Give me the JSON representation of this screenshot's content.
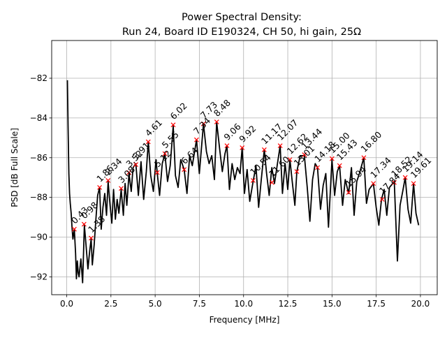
{
  "chart_data": {
    "type": "line",
    "title_line1": "Power Spectral Density:",
    "title_line2": "Run 24, Board ID E190324, CH 50, hi gain, 25Ω",
    "xlabel": "Frequency [MHz]",
    "ylabel": "PSD [dB Full Scale]",
    "xlim": [
      -0.85,
      20.95
    ],
    "ylim": [
      -92.9,
      -80.1
    ],
    "xticks": [
      0.0,
      2.5,
      5.0,
      7.5,
      10.0,
      12.5,
      15.0,
      17.5,
      20.0
    ],
    "xtick_labels": [
      "0.0",
      "2.5",
      "5.0",
      "7.5",
      "10.0",
      "12.5",
      "15.0",
      "17.5",
      "20.0"
    ],
    "yticks": [
      -92,
      -90,
      -88,
      -86,
      -84,
      -82
    ],
    "ytick_labels": [
      "−92",
      "−90",
      "−88",
      "−86",
      "−84",
      "−82"
    ],
    "grid": true,
    "series": [
      {
        "color": "#000000",
        "x": [
          0.04,
          0.08,
          0.12,
          0.16,
          0.2,
          0.25,
          0.3,
          0.35,
          0.43,
          0.5,
          0.55,
          0.6,
          0.65,
          0.7,
          0.8,
          0.9,
          1.0,
          1.1,
          1.2,
          1.3,
          1.38,
          1.45,
          1.55,
          1.65,
          1.75,
          1.86,
          1.95,
          2.05,
          2.15,
          2.25,
          2.34,
          2.45,
          2.55,
          2.65,
          2.75,
          2.85,
          2.95,
          3.08,
          3.2,
          3.3,
          3.4,
          3.52,
          3.65,
          3.75,
          3.91,
          4.05,
          4.2,
          4.35,
          4.5,
          4.61,
          4.75,
          4.9,
          5.05,
          5.12,
          5.25,
          5.4,
          5.55,
          5.7,
          5.85,
          6.02,
          6.15,
          6.3,
          6.45,
          6.64,
          6.8,
          6.95,
          7.1,
          7.34,
          7.5,
          7.73,
          7.9,
          8.05,
          8.2,
          8.35,
          8.48,
          8.65,
          8.8,
          8.95,
          9.06,
          9.2,
          9.35,
          9.5,
          9.65,
          9.8,
          9.92,
          10.05,
          10.2,
          10.35,
          10.54,
          10.7,
          10.85,
          11.0,
          11.17,
          11.3,
          11.45,
          11.6,
          11.75,
          11.9,
          12.07,
          12.2,
          12.35,
          12.5,
          12.62,
          12.75,
          12.9,
          13.01,
          13.2,
          13.44,
          13.6,
          13.75,
          13.9,
          14.05,
          14.18,
          14.35,
          14.5,
          14.65,
          14.8,
          15.0,
          15.15,
          15.3,
          15.43,
          15.6,
          15.75,
          15.94,
          16.1,
          16.25,
          16.4,
          16.55,
          16.8,
          16.95,
          17.1,
          17.34,
          17.5,
          17.65,
          17.8,
          17.95,
          18.1,
          18.25,
          18.52,
          18.7,
          18.85,
          19.0,
          19.14,
          19.3,
          19.45,
          19.61,
          19.75,
          19.9
        ],
        "y": [
          -82.1,
          -84.5,
          -86.8,
          -87.8,
          -88.3,
          -88.8,
          -89.5,
          -90.1,
          -89.6,
          -90.8,
          -92.1,
          -91.2,
          -91.8,
          -92.0,
          -91.1,
          -92.3,
          -89.4,
          -90.5,
          -91.6,
          -90.7,
          -90.1,
          -91.4,
          -90.4,
          -89.1,
          -87.9,
          -87.5,
          -89.6,
          -88.5,
          -87.8,
          -88.9,
          -87.2,
          -88.4,
          -89.3,
          -87.6,
          -89.1,
          -88.1,
          -88.8,
          -87.6,
          -88.9,
          -87.3,
          -88.4,
          -86.8,
          -87.7,
          -86.5,
          -86.3,
          -87.9,
          -86.2,
          -88.1,
          -86.7,
          -85.2,
          -86.9,
          -87.7,
          -86.1,
          -86.8,
          -87.9,
          -86.3,
          -85.8,
          -87.2,
          -86.4,
          -84.4,
          -86.9,
          -87.5,
          -86.1,
          -86.6,
          -87.8,
          -85.9,
          -86.4,
          -85.1,
          -86.8,
          -84.3,
          -85.7,
          -86.3,
          -85.9,
          -87.1,
          -84.2,
          -85.6,
          -86.7,
          -85.8,
          -85.4,
          -87.6,
          -86.3,
          -87.1,
          -86.5,
          -86.8,
          -85.5,
          -87.8,
          -86.6,
          -88.2,
          -87.2,
          -86.4,
          -88.5,
          -87.1,
          -85.6,
          -86.8,
          -87.9,
          -86.5,
          -87.3,
          -86.4,
          -85.4,
          -87.8,
          -86.3,
          -87.6,
          -86.1,
          -87.2,
          -88.4,
          -86.7,
          -85.9,
          -85.9,
          -87.5,
          -89.2,
          -87.1,
          -86.3,
          -86.5,
          -88.6,
          -87.4,
          -86.8,
          -89.5,
          -86.1,
          -87.9,
          -86.7,
          -86.4,
          -88.4,
          -87.1,
          -87.8,
          -86.5,
          -88.9,
          -87.2,
          -86.8,
          -86.0,
          -88.3,
          -87.6,
          -87.3,
          -88.5,
          -89.4,
          -88.1,
          -87.6,
          -88.9,
          -87.5,
          -87.2,
          -91.2,
          -88.4,
          -87.7,
          -87.0,
          -88.6,
          -89.3,
          -87.3,
          -88.8,
          -89.4
        ]
      }
    ],
    "peaks": {
      "marker": "x",
      "color": "#ff0000",
      "x": [
        0.43,
        0.98,
        1.38,
        1.86,
        2.34,
        3.08,
        3.52,
        3.91,
        4.61,
        5.12,
        5.55,
        6.02,
        6.64,
        7.34,
        7.73,
        8.48,
        9.06,
        9.92,
        10.54,
        11.17,
        11.6,
        12.07,
        12.62,
        13.01,
        13.44,
        14.18,
        15.0,
        15.43,
        15.94,
        16.8,
        17.34,
        17.84,
        18.52,
        19.14,
        19.61
      ],
      "y": [
        -89.6,
        -89.35,
        -90.05,
        -87.5,
        -87.15,
        -87.55,
        -86.75,
        -86.35,
        -85.2,
        -86.75,
        -85.8,
        -84.35,
        -86.6,
        -85.1,
        -84.3,
        -84.2,
        -85.4,
        -85.5,
        -87.15,
        -85.6,
        -87.25,
        -85.4,
        -86.1,
        -86.7,
        -85.85,
        -86.5,
        -86.05,
        -86.4,
        -87.75,
        -86.0,
        -87.3,
        -88.1,
        -87.25,
        -87.0,
        -87.3
      ],
      "labels": [
        "0.43",
        "0.98",
        "1.38",
        "1.86",
        "2.34",
        "3.08",
        "3.52",
        "3.91",
        "4.61",
        "5.12",
        "5.55",
        "6.02",
        "6.64",
        "7.34",
        "7.73",
        "8.48",
        "9.06",
        "9.92",
        "10.54",
        "11.17",
        "11.60",
        "12.07",
        "12.62",
        "13.01",
        "13.44",
        "14.18",
        "15.00",
        "15.43",
        "15.94",
        "16.80",
        "17.34",
        "17.84",
        "18.52",
        "19.14",
        "19.61"
      ]
    }
  }
}
